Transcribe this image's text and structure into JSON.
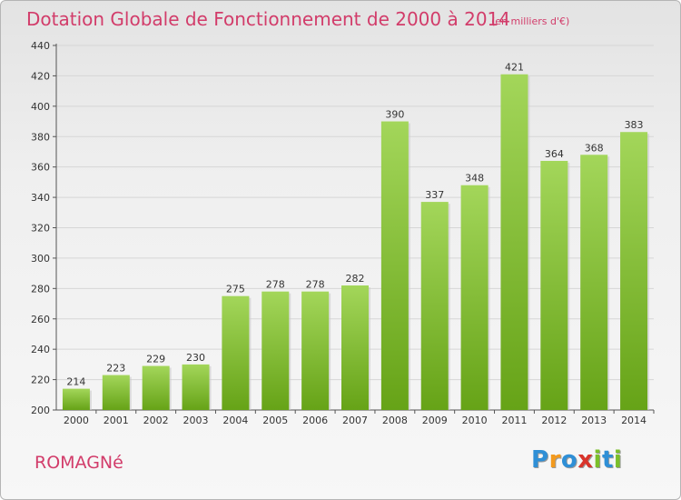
{
  "title": "Dotation Globale de Fonctionnement de 2000 à 2014",
  "unit": "(en milliers d'€)",
  "commune": "ROMAGNé",
  "logo": {
    "text": "Proxiti",
    "colors": [
      "#2f8fd6",
      "#f39a1e",
      "#2f8fd6",
      "#d9342b",
      "#7bbf2a",
      "#2f8fd6",
      "#7bbf2a"
    ]
  },
  "colors": {
    "accent": "#d23c6a",
    "bar_top": "#a3d65a",
    "bar_bottom": "#66a317"
  },
  "chart_data": {
    "type": "bar",
    "categories": [
      "2000",
      "2001",
      "2002",
      "2003",
      "2004",
      "2005",
      "2006",
      "2007",
      "2008",
      "2009",
      "2010",
      "2011",
      "2012",
      "2013",
      "2014"
    ],
    "values": [
      214,
      223,
      229,
      230,
      275,
      278,
      278,
      282,
      390,
      337,
      348,
      421,
      364,
      368,
      383
    ],
    "ylim": [
      200,
      440
    ],
    "yticks": [
      200,
      220,
      240,
      260,
      280,
      300,
      320,
      340,
      360,
      380,
      400,
      420,
      440
    ],
    "grid": true,
    "data_labels": true
  }
}
